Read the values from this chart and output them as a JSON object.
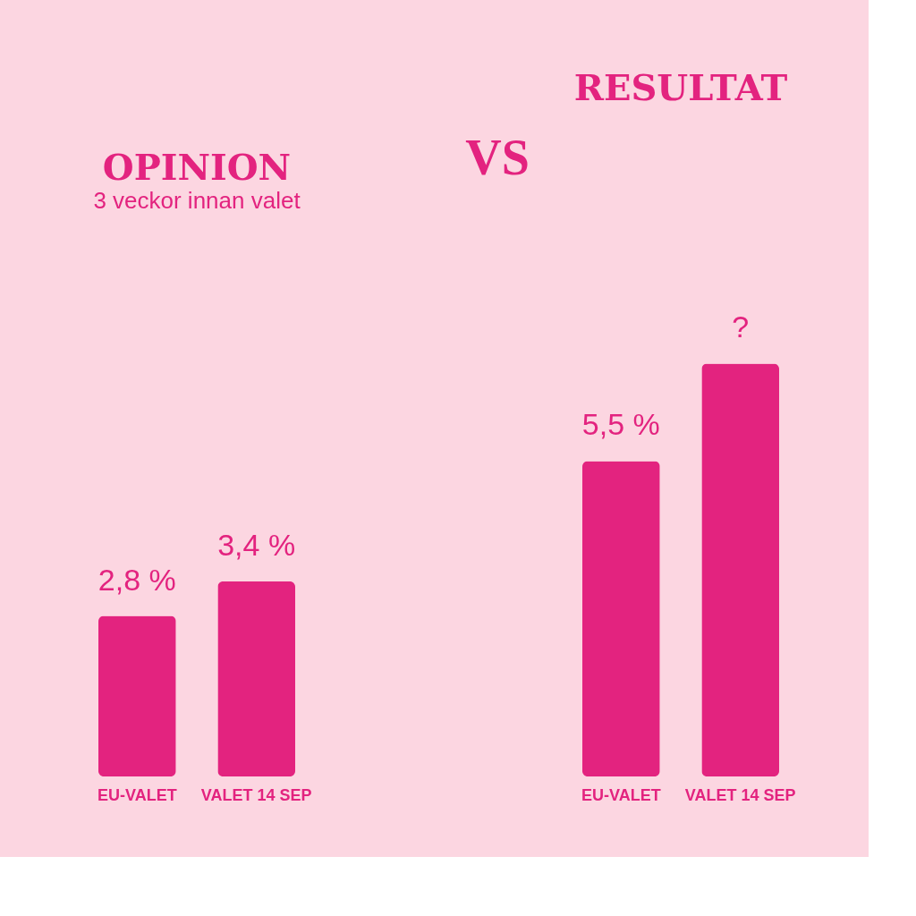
{
  "chart_data": [
    {
      "type": "bar",
      "title": "OPINION",
      "subtitle": "3 veckor innan valet",
      "categories": [
        "EU-VALET",
        "VALET 14 SEP"
      ],
      "values": [
        2.8,
        3.4
      ],
      "value_labels": [
        "2,8 %",
        "3,4 %"
      ],
      "color": "#e3237f",
      "grid": false,
      "tick_labels": "x"
    },
    {
      "type": "bar",
      "title": "RESULTAT",
      "annotations": [
        "VS"
      ],
      "categories": [
        "EU-VALET",
        "VALET 14 SEP"
      ],
      "values": [
        5.5,
        7.2
      ],
      "value_labels": [
        "5,5 %",
        "?"
      ],
      "color": "#e3237f",
      "grid": false,
      "tick_labels": "x"
    }
  ]
}
